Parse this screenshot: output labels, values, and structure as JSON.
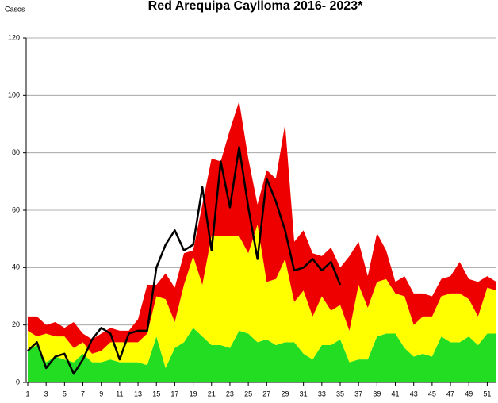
{
  "chart_data": {
    "type": "area",
    "title": "Red Arequipa Caylloma 2016- 2023*",
    "y_label": "Casos",
    "x": [
      1,
      2,
      3,
      4,
      5,
      6,
      7,
      8,
      9,
      10,
      11,
      12,
      13,
      14,
      15,
      16,
      17,
      18,
      19,
      20,
      21,
      22,
      23,
      24,
      25,
      26,
      27,
      28,
      29,
      30,
      31,
      32,
      33,
      34,
      35,
      36,
      37,
      38,
      39,
      40,
      41,
      42,
      43,
      44,
      45,
      46,
      47,
      48,
      49,
      50,
      51,
      52
    ],
    "xlim": [
      1,
      52
    ],
    "xticks": [
      1,
      3,
      5,
      7,
      9,
      11,
      13,
      15,
      17,
      19,
      21,
      23,
      25,
      27,
      29,
      31,
      33,
      35,
      37,
      39,
      41,
      43,
      45,
      47,
      49,
      51
    ],
    "ylim": [
      0,
      120
    ],
    "yticks": [
      0,
      20,
      40,
      60,
      80,
      100,
      120
    ],
    "grid": true,
    "stacked": true,
    "series": [
      {
        "type": "area",
        "color": "#22dd22",
        "values": [
          11,
          13,
          7,
          9,
          8,
          7,
          10,
          7,
          7,
          8,
          7,
          7,
          7,
          6,
          16,
          5,
          12,
          14,
          19,
          16,
          13,
          13,
          12,
          18,
          17,
          14,
          15,
          13,
          14,
          14,
          10,
          8,
          13,
          13,
          15,
          7,
          8,
          8,
          16,
          17,
          17,
          12,
          9,
          10,
          9,
          16,
          14,
          14,
          16,
          13,
          17,
          17
        ]
      },
      {
        "type": "area",
        "color": "#ffff00",
        "values": [
          7,
          3,
          10,
          7,
          8,
          5,
          4,
          3,
          4,
          6,
          7,
          7,
          7,
          11,
          14,
          24,
          9,
          20,
          25,
          18,
          38,
          38,
          39,
          33,
          28,
          41,
          20,
          23,
          29,
          14,
          22,
          15,
          17,
          12,
          12,
          11,
          26,
          18,
          19,
          19,
          14,
          18,
          11,
          13,
          14,
          14,
          17,
          17,
          13,
          10,
          16,
          15
        ]
      },
      {
        "type": "area",
        "color": "#ee0000",
        "values": [
          5,
          7,
          3,
          5,
          3,
          9,
          3,
          5,
          6,
          5,
          4,
          4,
          8,
          17,
          4,
          9,
          12,
          11,
          2,
          28,
          27,
          26,
          37,
          47,
          33,
          7,
          39,
          35,
          47,
          21,
          21,
          22,
          14,
          22,
          13,
          26,
          15,
          11,
          17,
          10,
          4,
          7,
          11,
          8,
          7,
          6,
          6,
          11,
          7,
          12,
          4,
          3
        ]
      },
      {
        "type": "line",
        "color": "#000000",
        "values": [
          11,
          14,
          5,
          9,
          10,
          3,
          8,
          15,
          19,
          17,
          8,
          17,
          18,
          18,
          40,
          48,
          53,
          46,
          48,
          68,
          46,
          77,
          61,
          82,
          61,
          43,
          71,
          63,
          53,
          39,
          40,
          43,
          39,
          42,
          34,
          null,
          null,
          null,
          null,
          null,
          null,
          null,
          null,
          null,
          null,
          null,
          null,
          null,
          null,
          null,
          null,
          null
        ]
      }
    ]
  }
}
